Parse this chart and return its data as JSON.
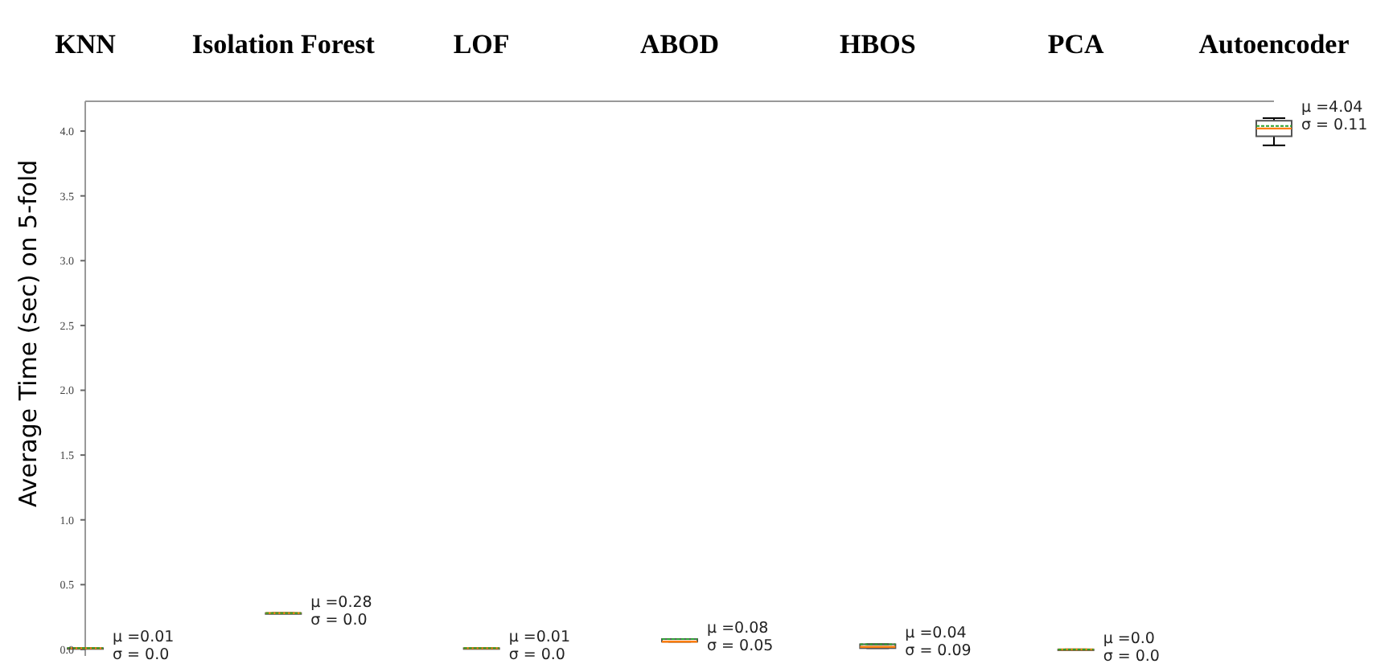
{
  "chart_data": {
    "type": "box",
    "categories": [
      "KNN",
      "Isolation Forest",
      "LOF",
      "ABOD",
      "HBOS",
      "PCA",
      "Autoencoder"
    ],
    "ylabel": "Average Time (sec) on 5-fold",
    "ylim": [
      -0.05,
      4.23
    ],
    "yticks": [
      {
        "value": 0,
        "label": "0.0"
      },
      {
        "value": 0.5,
        "label": "0.5"
      },
      {
        "value": 1,
        "label": "1.0"
      },
      {
        "value": 1.5,
        "label": "1.5"
      },
      {
        "value": 2,
        "label": "2.0"
      },
      {
        "value": 2.5,
        "label": "2.5"
      },
      {
        "value": 3,
        "label": "3.0"
      },
      {
        "value": 3.5,
        "label": "3.5"
      },
      {
        "value": 4,
        "label": "4.0"
      }
    ],
    "boxes": [
      {
        "low": 0.01,
        "q1": 0.01,
        "median": 0.01,
        "q3": 0.01,
        "high": 0.01,
        "mean": 0.01
      },
      {
        "low": 0.28,
        "q1": 0.28,
        "median": 0.28,
        "q3": 0.28,
        "high": 0.28,
        "mean": 0.28
      },
      {
        "low": 0.01,
        "q1": 0.01,
        "median": 0.01,
        "q3": 0.01,
        "high": 0.01,
        "mean": 0.01
      },
      {
        "low": 0.06,
        "q1": 0.06,
        "median": 0.06,
        "q3": 0.08,
        "high": 0.08,
        "mean": 0.08
      },
      {
        "low": 0.01,
        "q1": 0.01,
        "median": 0.02,
        "q3": 0.04,
        "high": 0.04,
        "mean": 0.04
      },
      {
        "low": 0,
        "q1": 0,
        "median": 0,
        "q3": 0,
        "high": 0,
        "mean": 0
      },
      {
        "low": 3.89,
        "q1": 3.96,
        "median": 4.02,
        "q3": 4.08,
        "high": 4.1,
        "mean": 4.04
      }
    ],
    "annotations": [
      {
        "text": "μ =0.01\nσ = 0.0",
        "x": "KNN",
        "y": 0.01
      },
      {
        "text": "μ =0.28\nσ = 0.0",
        "x": "Isolation Forest",
        "y": 0.28
      },
      {
        "text": "μ =0.01\nσ = 0.0",
        "x": "LOF",
        "y": 0.01
      },
      {
        "text": "μ =0.08\nσ = 0.05",
        "x": "ABOD",
        "y": 0.08
      },
      {
        "text": "μ =0.04\nσ = 0.09",
        "x": "HBOS",
        "y": 0.04
      },
      {
        "text": "μ =0.0\nσ = 0.0",
        "x": "PCA",
        "y": 0
      },
      {
        "text": "μ =4.04\nσ = 0.11",
        "x": "Autoencoder",
        "y": 4.1
      }
    ],
    "grid": false,
    "legend": false
  }
}
